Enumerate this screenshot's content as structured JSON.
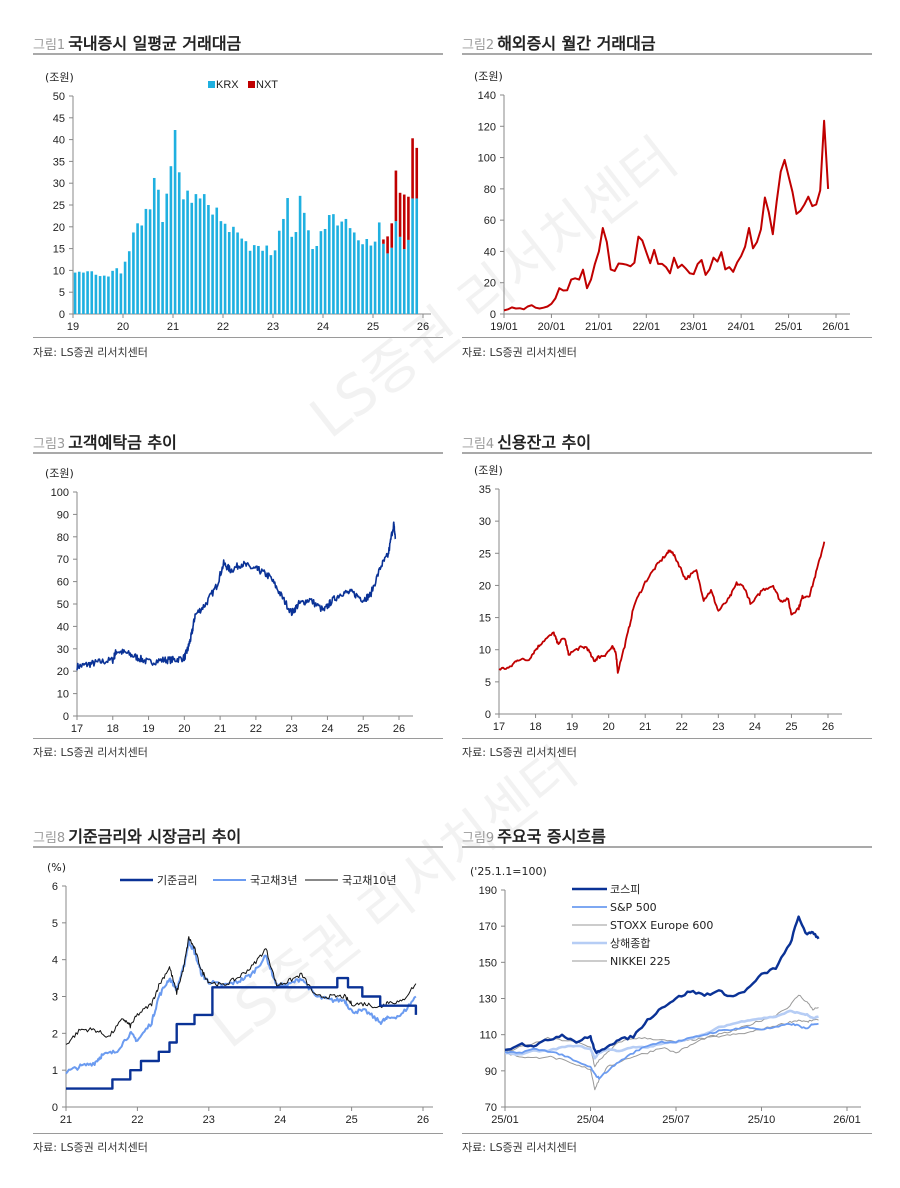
{
  "source_note": "자료: LS증권 리서치센터",
  "watermark": "LS증권 리서치센터",
  "colors": {
    "krx": "#1fb0e0",
    "nxt": "#c00000",
    "red_line": "#c00000",
    "navy": "#0a3296",
    "light_blue": "#6b9bf0",
    "pale_blue": "#b6cdf5",
    "black": "#111111",
    "gray": "#9a9a9a"
  },
  "chart_data": [
    {
      "id": "fig1",
      "type": "bar",
      "figure_label": "그림1",
      "title": "국내증시 일평균 거래대금",
      "ylabel": "(조원)",
      "ylim": [
        0,
        50
      ],
      "yticks": [
        0,
        5,
        10,
        15,
        20,
        25,
        30,
        35,
        40,
        45,
        50
      ],
      "xticks": [
        "19",
        "20",
        "21",
        "22",
        "23",
        "24",
        "25",
        "26"
      ],
      "legend": [
        "KRX",
        "NXT"
      ],
      "legend_position": "top-center",
      "x_start": "2019-01",
      "stacked": true,
      "series": [
        {
          "name": "KRX",
          "values": [
            9.5,
            9.7,
            9.5,
            9.8,
            9.8,
            9.0,
            8.7,
            8.8,
            8.6,
            9.9,
            10.5,
            9.3,
            12.0,
            14.4,
            18.7,
            20.8,
            20.3,
            24.1,
            24.0,
            31.2,
            28.5,
            21.1,
            27.6,
            33.9,
            42.2,
            32.5,
            26.3,
            28.3,
            25.5,
            27.5,
            26.5,
            27.5,
            25.0,
            22.8,
            24.4,
            21.3,
            20.7,
            18.8,
            20.0,
            18.7,
            17.3,
            16.7,
            14.5,
            15.8,
            15.6,
            14.5,
            15.7,
            13.5,
            14.6,
            19.1,
            21.8,
            26.6,
            17.7,
            18.8,
            27.1,
            23.2,
            19.2,
            14.9,
            15.6,
            19.0,
            19.5,
            22.7,
            22.9,
            20.3,
            21.2,
            21.8,
            19.7,
            18.7,
            16.9,
            16.0,
            17.2,
            15.7,
            16.6,
            21.0,
            16.1,
            13.9,
            15.2,
            21.3,
            17.7,
            14.9,
            17.0,
            26.5,
            26.5
          ],
          "note": "monthly from 2019-01"
        },
        {
          "name": "NXT",
          "values": [
            0,
            0,
            0,
            0,
            0,
            0,
            0,
            0,
            0,
            0,
            0,
            0,
            0,
            0,
            0,
            0,
            0,
            0,
            0,
            0,
            0,
            0,
            0,
            0,
            0,
            0,
            0,
            0,
            0,
            0,
            0,
            0,
            0,
            0,
            0,
            0,
            0,
            0,
            0,
            0,
            0,
            0,
            0,
            0,
            0,
            0,
            0,
            0,
            0,
            0,
            0,
            0,
            0,
            0,
            0,
            0,
            0,
            0,
            0,
            0,
            0,
            0,
            0,
            0,
            0,
            0,
            0,
            0,
            0,
            0,
            0,
            0,
            0,
            0,
            1.0,
            3.9,
            5.6,
            11.6,
            10.1,
            12.5,
            9.9,
            13.8,
            11.6
          ]
        }
      ]
    },
    {
      "id": "fig2",
      "type": "line",
      "figure_label": "그림2",
      "title": "해외증시 월간 거래대금",
      "ylabel": "(조원)",
      "ylim": [
        0,
        140
      ],
      "yticks": [
        0,
        20,
        40,
        60,
        80,
        100,
        120,
        140
      ],
      "xticks": [
        "19/01",
        "20/01",
        "21/01",
        "22/01",
        "23/01",
        "24/01",
        "25/01",
        "26/01"
      ],
      "x_start": "2019-01",
      "series": [
        {
          "name": "해외증시 거래대금",
          "values": [
            2.3,
            3.0,
            4.2,
            3.5,
            3.7,
            3.0,
            4.8,
            5.6,
            4.0,
            3.5,
            4.0,
            4.8,
            6.5,
            10.0,
            16.5,
            15.0,
            15.2,
            22.0,
            22.8,
            22.0,
            28.3,
            16.5,
            22.0,
            32.0,
            40.0,
            55.0,
            46.0,
            28.5,
            27.5,
            32.3,
            32.0,
            31.5,
            30.5,
            32.8,
            49.5,
            47.0,
            39.5,
            32.5,
            41.0,
            32.0,
            32.0,
            30.0,
            26.0,
            36.0,
            29.5,
            31.5,
            29.0,
            26.0,
            25.5,
            32.0,
            34.5,
            25.0,
            28.5,
            36.0,
            33.5,
            39.5,
            28.5,
            30.0,
            27.0,
            33.0,
            37.0,
            43.0,
            55.0,
            42.0,
            46.0,
            54.0,
            74.5,
            65.0,
            51.0,
            72.0,
            91.0,
            98.5,
            88.0,
            78.0,
            64.0,
            66.0,
            70.0,
            75.0,
            69.0,
            70.0,
            79.0,
            123.5,
            80.0
          ]
        }
      ]
    },
    {
      "id": "fig3",
      "type": "line",
      "figure_label": "그림3",
      "title": "고객예탁금 추이",
      "ylabel": "(조원)",
      "ylim": [
        0,
        100
      ],
      "yticks": [
        0,
        10,
        20,
        30,
        40,
        50,
        60,
        70,
        80,
        90,
        100
      ],
      "xticks": [
        "17",
        "18",
        "19",
        "20",
        "21",
        "22",
        "23",
        "24",
        "25",
        "26"
      ],
      "series": [
        {
          "name": "고객예탁금",
          "x": [
            17.0,
            17.3,
            17.6,
            18.0,
            18.1,
            18.4,
            18.7,
            19.0,
            19.4,
            19.7,
            20.0,
            20.1,
            20.2,
            20.3,
            20.6,
            20.9,
            21.1,
            21.3,
            21.6,
            21.9,
            22.1,
            22.4,
            22.7,
            23.0,
            23.2,
            23.5,
            23.9,
            24.1,
            24.4,
            24.7,
            25.0,
            25.2,
            25.5,
            25.7,
            25.85,
            25.9
          ],
          "values": [
            22,
            23,
            24,
            25,
            29,
            28,
            26,
            24,
            25,
            25,
            26,
            30,
            36,
            45,
            50,
            58,
            68,
            65,
            68,
            66,
            65,
            62,
            54,
            46,
            50,
            52,
            47,
            51,
            55,
            55,
            52,
            54,
            67,
            72,
            86,
            79
          ]
        }
      ]
    },
    {
      "id": "fig4",
      "type": "line",
      "figure_label": "그림4",
      "title": "신용잔고 추이",
      "ylabel": "(조원)",
      "ylim": [
        0,
        35
      ],
      "yticks": [
        0,
        5,
        10,
        15,
        20,
        25,
        30,
        35
      ],
      "xticks": [
        "17",
        "18",
        "19",
        "20",
        "21",
        "22",
        "23",
        "24",
        "25",
        "26"
      ],
      "series": [
        {
          "name": "신용잔고",
          "x": [
            17.0,
            17.3,
            17.5,
            17.8,
            18.0,
            18.2,
            18.5,
            18.6,
            18.8,
            18.9,
            19.2,
            19.4,
            19.6,
            19.7,
            19.9,
            20.1,
            20.2,
            20.25,
            20.5,
            20.7,
            21.0,
            21.3,
            21.6,
            21.7,
            21.9,
            22.1,
            22.4,
            22.6,
            22.8,
            23.0,
            23.3,
            23.5,
            23.7,
            23.9,
            24.2,
            24.5,
            24.7,
            24.9,
            25.0,
            25.2,
            25.3,
            25.5,
            25.7,
            25.9
          ],
          "values": [
            7.0,
            7.2,
            8.5,
            8.4,
            10.0,
            11.3,
            12.6,
            11.0,
            11.8,
            9.3,
            10.3,
            10.4,
            8.2,
            8.8,
            9.2,
            10.4,
            9.5,
            6.5,
            12.0,
            17.0,
            20.5,
            23.0,
            25.0,
            25.5,
            23.5,
            21.0,
            22.3,
            17.8,
            19.2,
            16.0,
            18.0,
            20.3,
            19.8,
            17.0,
            19.3,
            20.0,
            17.5,
            18.0,
            15.5,
            16.5,
            18.2,
            18.5,
            22.5,
            26.8
          ]
        }
      ]
    },
    {
      "id": "fig8",
      "type": "line",
      "figure_label": "그림8",
      "title": "기준금리와 시장금리 추이",
      "ylabel": "(%)",
      "ylim": [
        0,
        6
      ],
      "yticks": [
        0,
        1,
        2,
        3,
        4,
        5,
        6
      ],
      "xticks": [
        "21",
        "22",
        "23",
        "24",
        "25",
        "26"
      ],
      "legend": [
        "기준금리",
        "국고채3년",
        "국고채10년"
      ],
      "legend_position": "top",
      "series": [
        {
          "name": "기준금리",
          "x": [
            21.0,
            21.65,
            21.9,
            22.05,
            22.3,
            22.45,
            22.55,
            22.8,
            23.05,
            24.8,
            24.95,
            25.15,
            25.4,
            25.9
          ],
          "values": [
            0.5,
            0.75,
            1.0,
            1.25,
            1.5,
            1.75,
            2.25,
            2.5,
            3.25,
            3.5,
            3.25,
            3.0,
            2.75,
            2.5
          ],
          "step": true
        },
        {
          "name": "국고채3년",
          "x": [
            21.0,
            21.2,
            21.4,
            21.5,
            21.7,
            21.9,
            22.0,
            22.2,
            22.3,
            22.45,
            22.55,
            22.65,
            22.72,
            22.8,
            22.9,
            23.0,
            23.2,
            23.4,
            23.6,
            23.8,
            23.95,
            24.1,
            24.3,
            24.5,
            24.7,
            24.9,
            25.0,
            25.2,
            25.4,
            25.5,
            25.7,
            25.9
          ],
          "values": [
            0.95,
            1.1,
            1.2,
            1.4,
            1.5,
            2.0,
            1.8,
            2.3,
            3.0,
            3.5,
            3.2,
            3.8,
            4.5,
            4.2,
            3.6,
            3.4,
            3.3,
            3.4,
            3.6,
            4.1,
            3.3,
            3.3,
            3.5,
            3.0,
            2.9,
            2.9,
            2.6,
            2.6,
            2.3,
            2.4,
            2.5,
            3.0
          ]
        },
        {
          "name": "국고채10년",
          "x": [
            21.0,
            21.2,
            21.4,
            21.6,
            21.8,
            21.9,
            22.0,
            22.2,
            22.3,
            22.45,
            22.55,
            22.65,
            22.72,
            22.8,
            22.9,
            23.0,
            23.2,
            23.4,
            23.6,
            23.8,
            23.95,
            24.1,
            24.3,
            24.5,
            24.7,
            24.9,
            25.0,
            25.2,
            25.4,
            25.5,
            25.7,
            25.9
          ],
          "values": [
            1.7,
            2.1,
            2.1,
            1.9,
            2.4,
            2.2,
            2.5,
            2.8,
            3.3,
            3.8,
            3.1,
            3.8,
            4.6,
            4.3,
            3.7,
            3.4,
            3.3,
            3.5,
            3.8,
            4.3,
            3.3,
            3.4,
            3.6,
            3.0,
            3.0,
            3.0,
            2.8,
            2.8,
            2.7,
            2.85,
            2.85,
            3.35
          ]
        }
      ]
    },
    {
      "id": "fig9",
      "type": "line",
      "figure_label": "그림9",
      "title": "주요국 증시흐름",
      "ylabel": "('25.1.1=100)",
      "ylim": [
        70,
        190
      ],
      "yticks": [
        70,
        90,
        110,
        130,
        150,
        170,
        190
      ],
      "xticks": [
        "25/01",
        "25/04",
        "25/07",
        "25/10",
        "26/01"
      ],
      "legend": [
        "코스피",
        "S&P 500",
        "STOXX Europe 600",
        "상해종합",
        "NIKKEI 225"
      ],
      "legend_position": "top-left",
      "x_months": [
        0,
        0.5,
        1,
        1.5,
        2,
        2.5,
        3,
        3.15,
        3.3,
        3.6,
        4,
        4.5,
        5,
        5.5,
        6,
        6.5,
        7,
        7.5,
        8,
        8.5,
        9,
        9.5,
        10,
        10.3,
        10.6,
        10.8,
        11.0
      ],
      "series": [
        {
          "name": "코스피",
          "values": [
            101,
            105,
            104,
            107,
            110,
            106,
            109,
            101,
            100,
            104,
            107,
            109,
            118,
            125,
            130,
            134,
            132,
            134,
            131,
            135,
            143,
            147,
            160,
            175,
            165,
            167,
            163
          ]
        },
        {
          "name": "S&P 500",
          "values": [
            100,
            100,
            102,
            101,
            99,
            95,
            92,
            88,
            86,
            90,
            95,
            100,
            104,
            106,
            106,
            108,
            110,
            112,
            113,
            114,
            113,
            114,
            116,
            115,
            113,
            116,
            116
          ]
        },
        {
          "name": "STOXX Europe 600",
          "values": [
            100,
            103,
            105,
            108,
            107,
            106,
            103,
            92,
            96,
            100,
            106,
            108,
            108,
            107,
            106,
            107,
            108,
            109,
            110,
            111,
            113,
            115,
            117,
            118,
            117,
            118,
            118
          ]
        },
        {
          "name": "상해종합",
          "values": [
            100,
            99,
            101,
            101,
            103,
            104,
            102,
            97,
            100,
            102,
            101,
            103,
            103,
            105,
            106,
            108,
            110,
            114,
            116,
            118,
            119,
            120,
            123,
            122,
            121,
            119,
            120
          ]
        },
        {
          "name": "NIKKEI 225",
          "values": [
            100,
            98,
            97,
            98,
            96,
            93,
            91,
            80,
            85,
            92,
            95,
            98,
            100,
            103,
            100,
            104,
            108,
            110,
            112,
            115,
            118,
            121,
            126,
            132,
            128,
            124,
            125
          ]
        }
      ]
    }
  ]
}
